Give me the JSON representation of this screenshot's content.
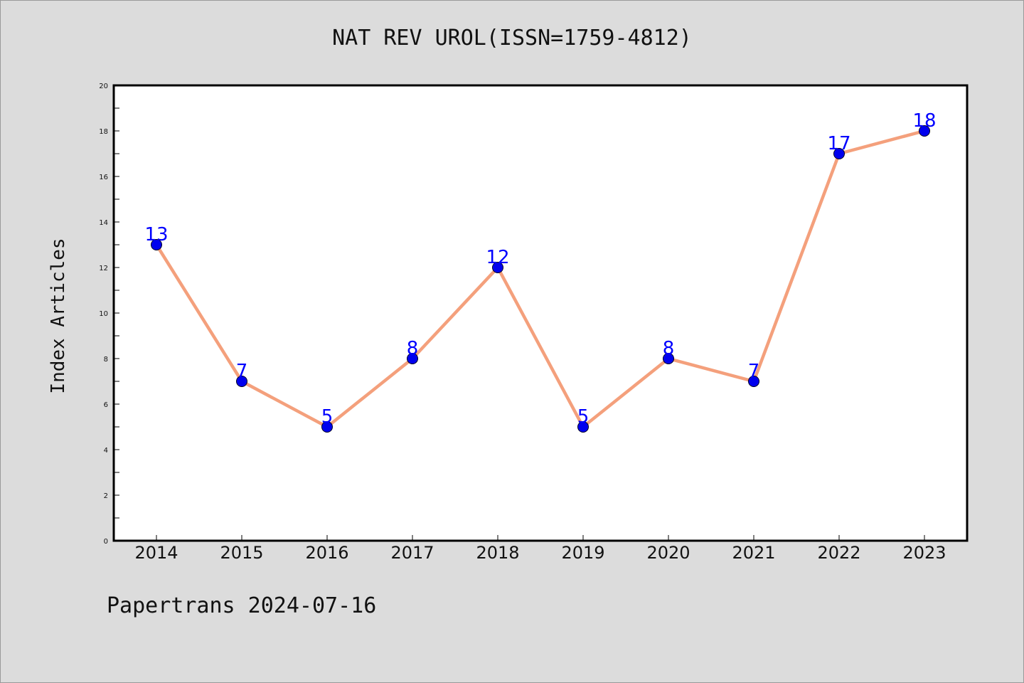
{
  "page": {
    "footer": "Papertrans 2024-07-16"
  },
  "colors": {
    "background": "#dcdcdc",
    "plot_background": "#ffffff",
    "line": "#f4a07c",
    "marker": "#0000ee",
    "data_label": "#0000ff"
  },
  "chart_data": {
    "type": "line",
    "title": "NAT REV UROL(ISSN=1759-4812)",
    "xlabel": "",
    "ylabel": "Index Articles",
    "categories": [
      "2014",
      "2015",
      "2016",
      "2017",
      "2018",
      "2019",
      "2020",
      "2021",
      "2022",
      "2023"
    ],
    "series": [
      {
        "values": [
          13,
          7,
          5,
          8,
          12,
          5,
          8,
          7,
          17,
          18
        ]
      }
    ],
    "ylim": [
      0,
      20
    ],
    "yticks": [
      0,
      2,
      4,
      6,
      8,
      10,
      12,
      14,
      16,
      18,
      20
    ],
    "grid": false,
    "legend": "none",
    "data_labels": true
  }
}
